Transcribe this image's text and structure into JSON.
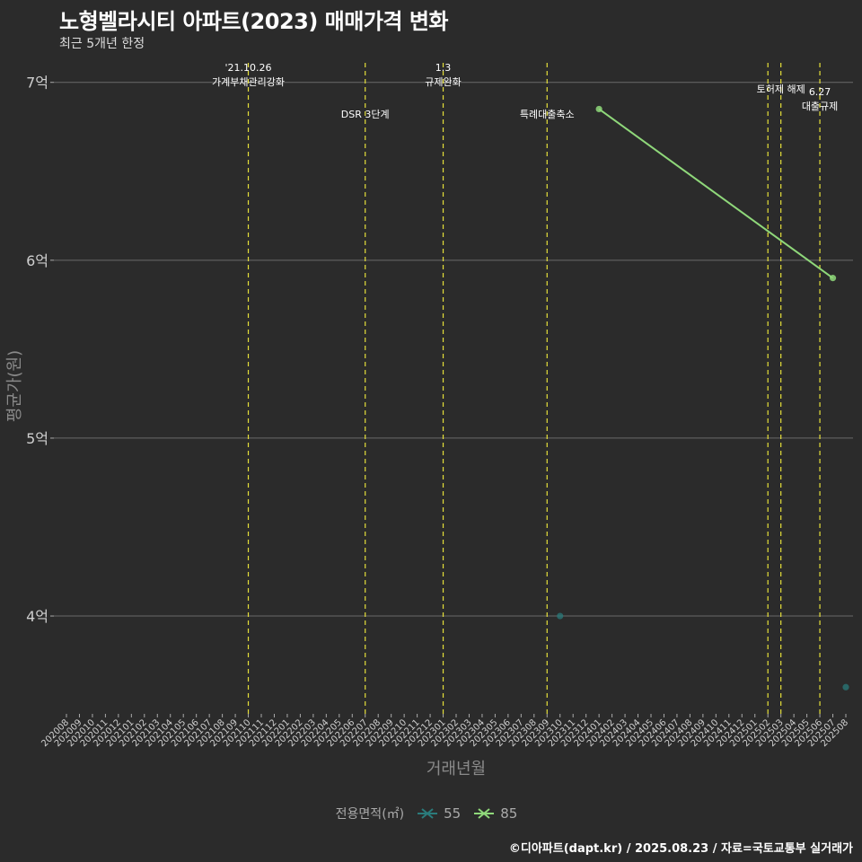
{
  "chart_data": {
    "type": "line",
    "title": "노형벨라시티 아파트(2023) 매매가격 변화",
    "subtitle": "최근 5개년 한정",
    "xlabel": "거래년월",
    "ylabel": "평균가(원)",
    "y_ticks": [
      {
        "value": 4,
        "label": "4억"
      },
      {
        "value": 5,
        "label": "5억"
      },
      {
        "value": 6,
        "label": "6억"
      },
      {
        "value": 7,
        "label": "7억"
      }
    ],
    "ylim": [
      3.45,
      7.15
    ],
    "x_start": "202008",
    "x_end": "202508",
    "legend_title": "전용면적(㎡)",
    "series": [
      {
        "name": "55",
        "color": "#2a7b7b",
        "points": [
          {
            "x": "202310",
            "y": 4.0
          },
          {
            "x": "202508",
            "y": 3.6
          }
        ]
      },
      {
        "name": "85",
        "color": "#8fd87a",
        "points": [
          {
            "x": "202401",
            "y": 6.85
          },
          {
            "x": "202507",
            "y": 5.9
          }
        ]
      }
    ],
    "events": [
      {
        "x": "202110",
        "lines": [
          "'21.10.26",
          "가계부채관리강화"
        ],
        "pos": "top"
      },
      {
        "x": "202207",
        "lines": [
          "DSR 3단계"
        ],
        "pos": "mid"
      },
      {
        "x": "202301",
        "lines": [
          "1.3",
          "규제완화"
        ],
        "pos": "top"
      },
      {
        "x": "202309",
        "lines": [
          "특례대출축소"
        ],
        "pos": "mid"
      },
      {
        "x": "202502",
        "lines": [],
        "pos": "none"
      },
      {
        "x": "202503",
        "lines": [
          "토허제 해제"
        ],
        "pos": "upper"
      },
      {
        "x": "202506",
        "lines": [
          "6.27",
          "대출규제"
        ],
        "pos": "low"
      }
    ]
  },
  "caption": "©디아파트(dapt.kr) / 2025.08.23 / 자료=국토교통부 실거래가"
}
